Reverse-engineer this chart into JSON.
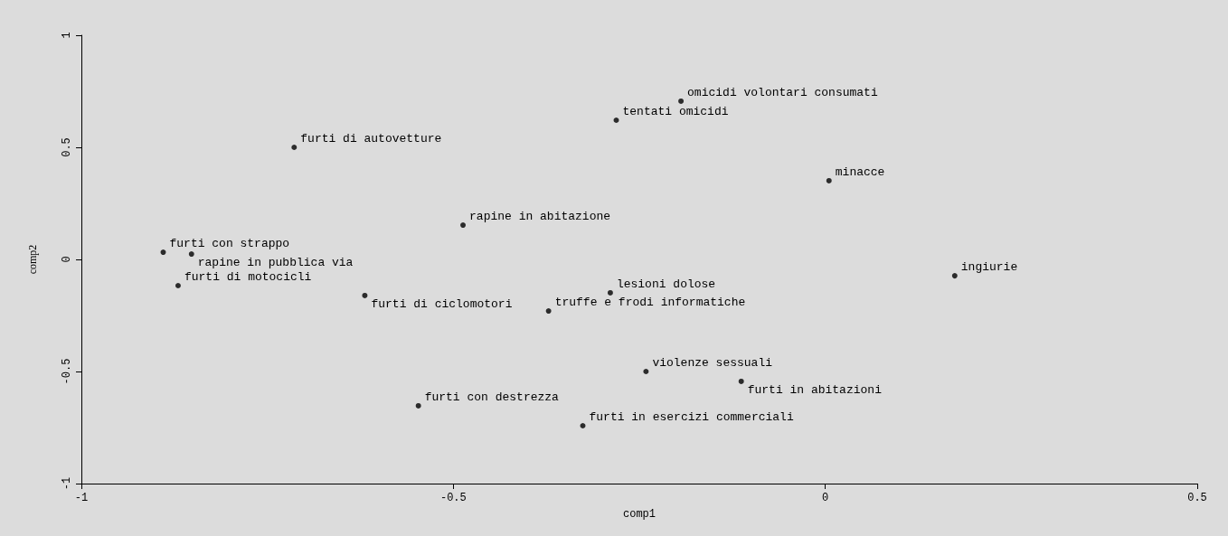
{
  "chart_data": {
    "type": "scatter",
    "xlabel": "comp1",
    "ylabel": "comp2",
    "color": "#000000",
    "marker": "circle",
    "grid": false,
    "x": [
      -0.194,
      -0.281,
      -0.714,
      0.005,
      -0.487,
      -0.89,
      -0.852,
      -0.87,
      -0.619,
      -0.289,
      -0.372,
      0.174,
      -0.241,
      -0.113,
      -0.547,
      -0.326
    ],
    "values": [
      0.706,
      0.621,
      0.5,
      0.351,
      0.153,
      0.032,
      0.024,
      -0.117,
      -0.161,
      -0.149,
      -0.23,
      -0.073,
      -0.5,
      -0.544,
      -0.653,
      -0.742
    ],
    "xlim": [
      -1,
      0.5
    ],
    "xticks": [
      -1,
      -0.5,
      0,
      0.5
    ],
    "ylim": [
      -1,
      1
    ],
    "yticks": [
      -1,
      -0.5,
      0,
      0.5,
      1
    ],
    "annotations": [
      {
        "text": "omicidi volontari consumati",
        "x": -0.194,
        "y": 0.706
      },
      {
        "text": "tentati omicidi",
        "x": -0.281,
        "y": 0.621
      },
      {
        "text": "furti di autovetture",
        "x": -0.714,
        "y": 0.5
      },
      {
        "text": "minacce",
        "x": 0.005,
        "y": 0.351
      },
      {
        "text": "rapine in abitazione",
        "x": -0.487,
        "y": 0.153
      },
      {
        "text": "furti con strappo",
        "x": -0.89,
        "y": 0.032
      },
      {
        "text": "rapine in pubblica via",
        "x": -0.852,
        "y": 0.024
      },
      {
        "text": "furti di motocicli",
        "x": -0.87,
        "y": -0.117
      },
      {
        "text": "furti di ciclomotori",
        "x": -0.619,
        "y": -0.161
      },
      {
        "text": "lesioni dolose",
        "x": -0.289,
        "y": -0.149
      },
      {
        "text": "truffe e frodi informatiche",
        "x": -0.372,
        "y": -0.23
      },
      {
        "text": "ingiurie",
        "x": 0.174,
        "y": -0.073
      },
      {
        "text": "violenze sessuali",
        "x": -0.241,
        "y": -0.5
      },
      {
        "text": "furti in abitazioni",
        "x": -0.113,
        "y": -0.544
      },
      {
        "text": "furti con destrezza",
        "x": -0.547,
        "y": -0.653
      },
      {
        "text": "furti in esercizi commerciali",
        "x": -0.326,
        "y": -0.742
      }
    ]
  }
}
